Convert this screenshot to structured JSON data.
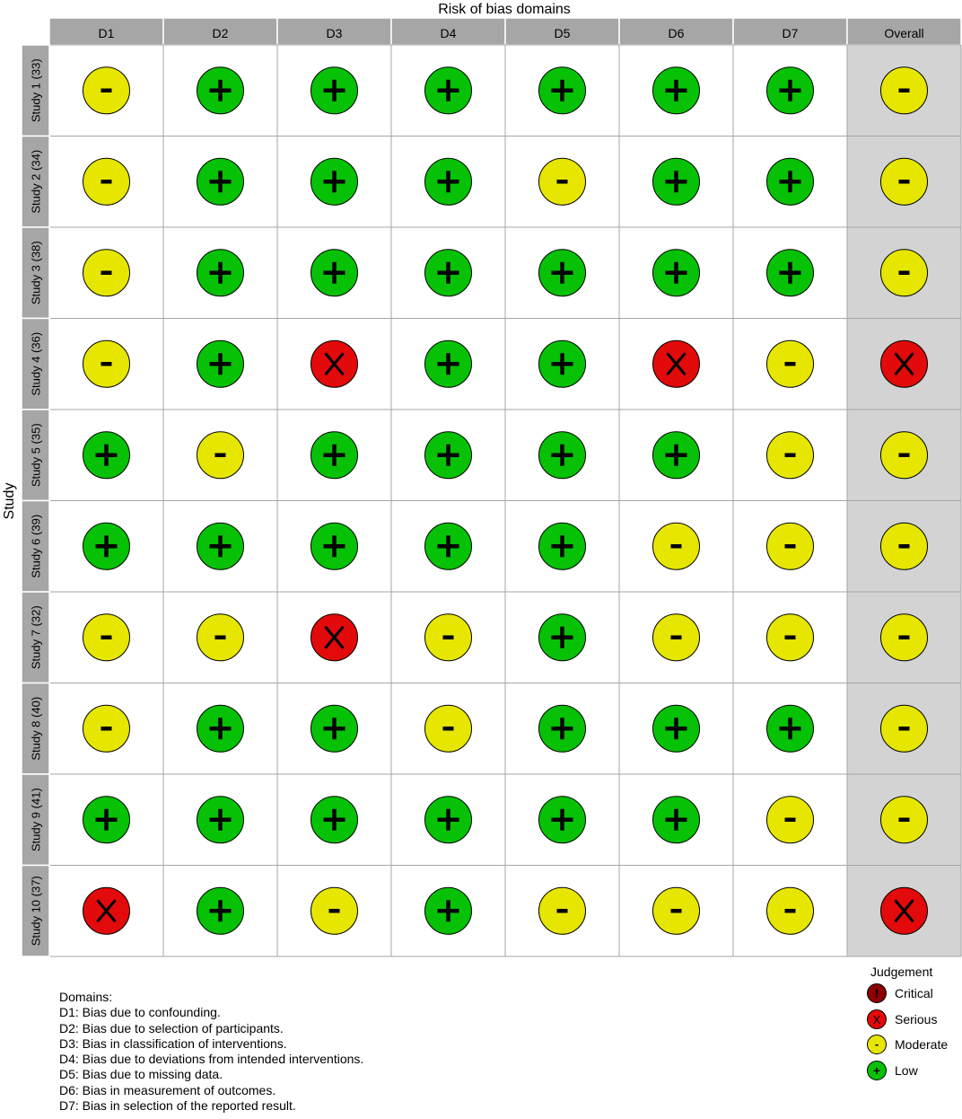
{
  "colors": {
    "Critical": "#8B0000",
    "Serious": "#E20A0A",
    "Moderate": "#E6E600",
    "Low": "#06C106",
    "header_fill": "#A6A6A6",
    "overall_fill": "#D3D3D3",
    "grid": "#A6A6A6"
  },
  "chart_data": {
    "type": "table",
    "title": "Risk of bias domains",
    "ylabel": "Study",
    "columns": [
      "D1",
      "D2",
      "D3",
      "D4",
      "D5",
      "D6",
      "D7",
      "Overall"
    ],
    "studies": [
      "Study 1 (33)",
      "Study 2 (34)",
      "Study 3 (38)",
      "Study 4 (36)",
      "Study 5 (35)",
      "Study 6 (39)",
      "Study 7 (32)",
      "Study 8 (40)",
      "Study 9 (41)",
      "Study 10 (37)"
    ],
    "judgements": [
      [
        "Moderate",
        "Low",
        "Low",
        "Low",
        "Low",
        "Low",
        "Low",
        "Moderate"
      ],
      [
        "Moderate",
        "Low",
        "Low",
        "Low",
        "Moderate",
        "Low",
        "Low",
        "Moderate"
      ],
      [
        "Moderate",
        "Low",
        "Low",
        "Low",
        "Low",
        "Low",
        "Low",
        "Moderate"
      ],
      [
        "Moderate",
        "Low",
        "Serious",
        "Low",
        "Low",
        "Serious",
        "Moderate",
        "Serious"
      ],
      [
        "Low",
        "Moderate",
        "Low",
        "Low",
        "Low",
        "Low",
        "Moderate",
        "Moderate"
      ],
      [
        "Low",
        "Low",
        "Low",
        "Low",
        "Low",
        "Moderate",
        "Moderate",
        "Moderate"
      ],
      [
        "Moderate",
        "Moderate",
        "Serious",
        "Moderate",
        "Low",
        "Moderate",
        "Moderate",
        "Moderate"
      ],
      [
        "Moderate",
        "Low",
        "Low",
        "Moderate",
        "Low",
        "Low",
        "Low",
        "Moderate"
      ],
      [
        "Low",
        "Low",
        "Low",
        "Low",
        "Low",
        "Low",
        "Moderate",
        "Moderate"
      ],
      [
        "Serious",
        "Low",
        "Moderate",
        "Low",
        "Moderate",
        "Moderate",
        "Moderate",
        "Serious"
      ]
    ],
    "symbols": {
      "Critical": "!",
      "Serious": "X",
      "Moderate": "-",
      "Low": "+"
    }
  },
  "domains": {
    "title": "Domains:",
    "items": [
      "D1: Bias due to confounding.",
      "D2: Bias due to selection of participants.",
      "D3: Bias in classification of interventions.",
      "D4: Bias due to deviations from intended interventions.",
      "D5: Bias due to missing data.",
      "D6: Bias in measurement of outcomes.",
      "D7: Bias in selection of the reported result."
    ]
  },
  "legend": {
    "title": "Judgement",
    "items": [
      {
        "label": "Critical",
        "symbol": "!"
      },
      {
        "label": "Serious",
        "symbol": "X"
      },
      {
        "label": "Moderate",
        "symbol": "-"
      },
      {
        "label": "Low",
        "symbol": "+"
      }
    ]
  }
}
